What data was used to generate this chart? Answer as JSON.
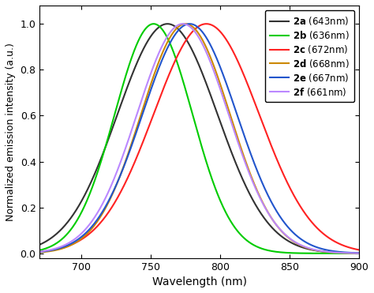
{
  "series": [
    {
      "label": "2a",
      "nm": "643nm",
      "color": "#333333",
      "linewidth": 1.5,
      "emission_peak": 762,
      "sigma": 36
    },
    {
      "label": "2b",
      "nm": "636nm",
      "color": "#00cc00",
      "linewidth": 1.5,
      "emission_peak": 752,
      "sigma": 28
    },
    {
      "label": "2c",
      "nm": "672nm",
      "color": "#ff2222",
      "linewidth": 1.5,
      "emission_peak": 790,
      "sigma": 38
    },
    {
      "label": "2d",
      "nm": "668nm",
      "color": "#cc8800",
      "linewidth": 1.5,
      "emission_peak": 775,
      "sigma": 32
    },
    {
      "label": "2e",
      "nm": "667nm",
      "color": "#2255cc",
      "linewidth": 1.5,
      "emission_peak": 778,
      "sigma": 34
    },
    {
      "label": "2f",
      "nm": "661nm",
      "color": "#bb88ff",
      "linewidth": 1.5,
      "emission_peak": 773,
      "sigma": 33
    }
  ],
  "xlim": [
    670,
    900
  ],
  "ylim": [
    -0.02,
    1.08
  ],
  "xticks": [
    700,
    750,
    800,
    850,
    900
  ],
  "yticks": [
    0.0,
    0.2,
    0.4,
    0.6,
    0.8,
    1.0
  ],
  "xlabel": "Wavelength (nm)",
  "ylabel": "Normalized emission intensity (a.u.)",
  "background_color": "#ffffff",
  "figsize": [
    4.74,
    3.71
  ],
  "dpi": 100
}
